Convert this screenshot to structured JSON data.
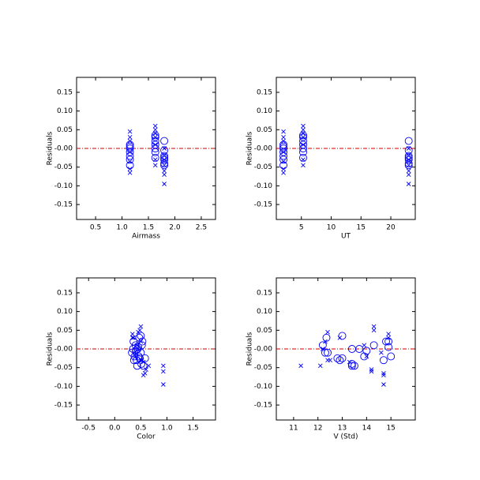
{
  "chart_data": [
    {
      "type": "scatter",
      "xlabel": "Airmass",
      "ylabel": "Residuals",
      "xlim": [
        0.14,
        2.77
      ],
      "xticks": [
        0.5,
        {
          "value": 1,
          "label": "1.0"
        },
        1.5,
        {
          "value": 2,
          "label": "2.0"
        },
        2.5
      ],
      "ylim": [
        -0.19,
        0.19
      ],
      "yticks": [
        -0.15,
        {
          "value": -0.1,
          "label": "-0.10"
        },
        -0.05,
        {
          "value": 0,
          "label": "-0.00"
        },
        0.05,
        {
          "value": 0.1,
          "label": "0.10"
        },
        0.15
      ],
      "hline": {
        "value": 0,
        "color": "#cc0000"
      },
      "series": [
        {
          "marker": "circle",
          "color": "#0000ff",
          "x": [
            1.15,
            1.15,
            1.15,
            1.15,
            1.15,
            1.15,
            1.15,
            1.63,
            1.63,
            1.63,
            1.63,
            1.63,
            1.63,
            1.63,
            1.8,
            1.8,
            1.8,
            1.8,
            1.8,
            1.8,
            1.8
          ],
          "values": [
            0.01,
            0.005,
            0,
            -0.01,
            -0.02,
            -0.03,
            -0.045,
            0.035,
            0.03,
            0.02,
            0.01,
            0,
            -0.01,
            -0.025,
            0.02,
            -0.005,
            -0.02,
            -0.025,
            -0.03,
            -0.04,
            -0.045
          ]
        },
        {
          "marker": "x",
          "color": "#0000ff",
          "x": [
            1.15,
            1.15,
            1.15,
            1.15,
            1.15,
            1.15,
            1.15,
            1.63,
            1.63,
            1.63,
            1.63,
            1.63,
            1.63,
            1.63,
            1.8,
            1.8,
            1.8,
            1.8,
            1.8,
            1.8,
            1.8
          ],
          "values": [
            0.045,
            0.03,
            0.02,
            -0.01,
            -0.035,
            -0.055,
            -0.065,
            0.06,
            0.05,
            0.04,
            0.03,
            0.01,
            -0.03,
            -0.045,
            0,
            -0.02,
            -0.03,
            -0.045,
            -0.06,
            -0.07,
            -0.095
          ]
        }
      ]
    },
    {
      "type": "scatter",
      "xlabel": "UT",
      "ylabel": "Residuals",
      "xlim": [
        0.8,
        24.1
      ],
      "xticks": [
        5,
        10,
        15,
        20
      ],
      "ylim": [
        -0.19,
        0.19
      ],
      "yticks": [
        -0.15,
        {
          "value": -0.1,
          "label": "-0.10"
        },
        -0.05,
        {
          "value": 0,
          "label": "-0.00"
        },
        0.05,
        {
          "value": 0.1,
          "label": "0.10"
        },
        0.15
      ],
      "hline": {
        "value": 0,
        "color": "#cc0000"
      },
      "series": [
        {
          "marker": "circle",
          "color": "#0000ff",
          "x": [
            2,
            2,
            2,
            2,
            2,
            2,
            2,
            5.3,
            5.3,
            5.3,
            5.3,
            5.3,
            5.3,
            5.3,
            23,
            23,
            23,
            23,
            23,
            23,
            23
          ],
          "values": [
            0.01,
            0.005,
            0,
            -0.01,
            -0.02,
            -0.03,
            -0.045,
            0.035,
            0.03,
            0.02,
            0.01,
            0,
            -0.01,
            -0.025,
            0.02,
            -0.005,
            -0.02,
            -0.025,
            -0.03,
            -0.04,
            -0.045
          ]
        },
        {
          "marker": "x",
          "color": "#0000ff",
          "x": [
            2,
            2,
            2,
            2,
            2,
            2,
            2,
            5.3,
            5.3,
            5.3,
            5.3,
            5.3,
            5.3,
            5.3,
            23,
            23,
            23,
            23,
            23,
            23,
            23
          ],
          "values": [
            0.045,
            0.03,
            0.02,
            -0.01,
            -0.035,
            -0.055,
            -0.065,
            0.06,
            0.05,
            0.04,
            0.03,
            0.01,
            -0.03,
            -0.045,
            0,
            -0.02,
            -0.03,
            -0.045,
            -0.06,
            -0.07,
            -0.095
          ]
        }
      ]
    },
    {
      "type": "scatter",
      "xlabel": "Color",
      "ylabel": "Residuals",
      "xlim": [
        -0.73,
        1.93
      ],
      "xticks": [
        -0.5,
        {
          "value": 0,
          "label": "0.0"
        },
        0.5,
        {
          "value": 1,
          "label": "1.0"
        },
        1.5
      ],
      "ylim": [
        -0.19,
        0.19
      ],
      "yticks": [
        -0.15,
        {
          "value": -0.1,
          "label": "-0.10"
        },
        -0.05,
        {
          "value": 0,
          "label": "-0.00"
        },
        0.05,
        {
          "value": 0.1,
          "label": "0.10"
        },
        0.15
      ],
      "hline": {
        "value": 0,
        "color": "#cc0000"
      },
      "series": [
        {
          "marker": "circle",
          "color": "#0000ff",
          "x": [
            0.4,
            0.45,
            0.35,
            0.5,
            0.38,
            0.42,
            0.55,
            0.5,
            0.47,
            0.36,
            0.52,
            0.44,
            0.33,
            0.48,
            0.53,
            0.4,
            0.46,
            0.58,
            0.37,
            0.51,
            0.43
          ],
          "values": [
            0.01,
            0.005,
            0,
            -0.01,
            -0.02,
            -0.03,
            -0.045,
            0.035,
            0.03,
            0.02,
            0.01,
            0,
            -0.01,
            -0.025,
            0.02,
            -0.005,
            -0.02,
            -0.025,
            -0.03,
            -0.04,
            -0.045
          ]
        },
        {
          "marker": "x",
          "color": "#0000ff",
          "x": [
            0.45,
            0.34,
            0.5,
            0.38,
            0.55,
            0.6,
            0.58,
            0.5,
            0.48,
            0.34,
            0.36,
            0.42,
            0.5,
            0.65,
            0.45,
            0.4,
            0.52,
            0.93,
            0.93,
            0.55,
            0.93
          ],
          "values": [
            0.045,
            0.03,
            0.02,
            -0.01,
            -0.035,
            -0.055,
            -0.065,
            0.06,
            0.05,
            0.04,
            0.03,
            0.01,
            -0.03,
            -0.045,
            0,
            -0.02,
            -0.03,
            -0.045,
            -0.06,
            -0.07,
            -0.095
          ]
        }
      ]
    },
    {
      "type": "scatter",
      "xlabel": "V (Std)",
      "ylabel": "Residuals",
      "xlim": [
        10.29,
        16.0
      ],
      "xticks": [
        11,
        12,
        13,
        14,
        15
      ],
      "ylim": [
        -0.19,
        0.19
      ],
      "yticks": [
        -0.15,
        {
          "value": -0.1,
          "label": "-0.10"
        },
        -0.05,
        {
          "value": 0,
          "label": "-0.00"
        },
        0.05,
        {
          "value": 0.1,
          "label": "0.10"
        },
        0.15
      ],
      "hline": {
        "value": 0,
        "color": "#cc0000"
      },
      "series": [
        {
          "marker": "circle",
          "color": "#0000ff",
          "x": [
            12.2,
            14.9,
            13.7,
            12.4,
            13.9,
            12.9,
            13.4,
            13.0,
            12.35,
            14.9,
            14.3,
            13.4,
            12.3,
            12.8,
            14.8,
            14.0,
            15.0,
            13.0,
            14.7,
            13.4,
            13.5
          ],
          "values": [
            0.01,
            0.005,
            0,
            -0.01,
            -0.02,
            -0.03,
            -0.045,
            0.035,
            0.03,
            0.02,
            0.01,
            0,
            -0.01,
            -0.025,
            0.02,
            -0.005,
            -0.02,
            -0.025,
            -0.03,
            -0.04,
            -0.045
          ]
        },
        {
          "marker": "x",
          "color": "#0000ff",
          "x": [
            12.4,
            14.9,
            12.3,
            14.6,
            13.3,
            14.2,
            14.7,
            14.3,
            14.3,
            14.9,
            12.9,
            13.9,
            12.4,
            11.3,
            12.2,
            14.0,
            12.5,
            12.1,
            14.2,
            14.7,
            14.7
          ],
          "values": [
            0.045,
            0.03,
            0.02,
            -0.01,
            -0.035,
            -0.055,
            -0.065,
            0.06,
            0.05,
            0.04,
            0.03,
            0.01,
            -0.03,
            -0.045,
            0,
            -0.02,
            -0.03,
            -0.045,
            -0.06,
            -0.07,
            -0.095
          ]
        }
      ]
    }
  ]
}
